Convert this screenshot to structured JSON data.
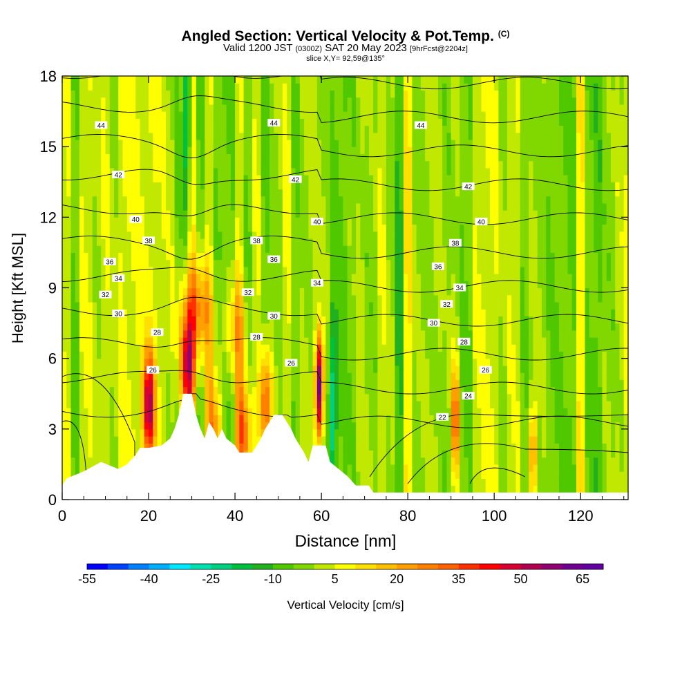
{
  "header": {
    "title": "Angled Section: Vertical Velocity & Pot.Temp.",
    "title_tag": "(C)",
    "valid_prefix": "Valid 1200 JST",
    "valid_z": "(0300Z)",
    "valid_date": "SAT 20 May 2023",
    "fcst_tag": "[9hrFcst@2204z]",
    "slice": "slice X,Y= 92,59@135°"
  },
  "chart_data": {
    "type": "heatmap",
    "xlabel": "Distance [nm]",
    "ylabel": "Height [Kft MSL]",
    "xlim": [
      0,
      131
    ],
    "ylim": [
      0,
      18
    ],
    "x_ticks": [
      0,
      20,
      40,
      60,
      80,
      100,
      120
    ],
    "y_ticks": [
      0,
      3,
      6,
      9,
      12,
      15,
      18
    ],
    "colorbar": {
      "label": "Vertical Velocity [cm/s]",
      "tick_labels": [
        -55,
        -40,
        -25,
        -10,
        5,
        20,
        35,
        50,
        65
      ],
      "min": -55,
      "step": 5,
      "colors": [
        "#0000ff",
        "#0040ff",
        "#0080ff",
        "#00b0ff",
        "#00e8ff",
        "#00e0b0",
        "#00d080",
        "#00c040",
        "#20b020",
        "#50c800",
        "#80d800",
        "#c0e800",
        "#ffff00",
        "#ffe000",
        "#ffc000",
        "#ffa000",
        "#ff8000",
        "#ff6000",
        "#ff3000",
        "#ff0000",
        "#d80030",
        "#b00050",
        "#900070",
        "#700090",
        "#6000a0"
      ]
    },
    "background_velocity": 0,
    "updrafts": [
      {
        "x": 20,
        "z": 4.0,
        "peak": 50,
        "width_nm": 1.4
      },
      {
        "x": 29,
        "z": 5.5,
        "peak": 48,
        "width_nm": 1.6
      },
      {
        "x": 31,
        "z": 8.0,
        "peak": 30,
        "width_nm": 3.5
      },
      {
        "x": 35,
        "z": 3.0,
        "peak": 25,
        "width_nm": 2.0
      },
      {
        "x": 40,
        "z": 7.2,
        "peak": 18,
        "width_nm": 3.0
      },
      {
        "x": 42,
        "z": 2.8,
        "peak": 30,
        "width_nm": 2.0
      },
      {
        "x": 47,
        "z": 4.0,
        "peak": 38,
        "width_nm": 1.4
      },
      {
        "x": 59.5,
        "z": 4.8,
        "peak": 65,
        "width_nm": 0.9
      },
      {
        "x": 91,
        "z": 3.5,
        "peak": 35,
        "width_nm": 0.8
      },
      {
        "x": 109,
        "z": 2.0,
        "peak": 30,
        "width_nm": 0.8
      }
    ],
    "downdrafts": [
      {
        "x": 29,
        "z": 16.5,
        "peak": -25,
        "width_nm": 0.8
      },
      {
        "x": 62.5,
        "z": 4.0,
        "peak": -20,
        "width_nm": 1.0
      }
    ],
    "terrain_kft": [
      [
        0,
        0.6
      ],
      [
        1,
        0.9
      ],
      [
        5,
        1.2
      ],
      [
        9,
        1.6
      ],
      [
        13,
        1.3
      ],
      [
        15,
        1.5
      ],
      [
        17,
        1.9
      ],
      [
        18,
        2.2
      ],
      [
        20,
        2.2
      ],
      [
        23,
        2.3
      ],
      [
        25,
        2.6
      ],
      [
        26,
        3.0
      ],
      [
        27,
        3.6
      ],
      [
        28,
        4.5
      ],
      [
        30,
        4.5
      ],
      [
        31,
        3.6
      ],
      [
        32,
        3.0
      ],
      [
        33,
        2.6
      ],
      [
        34,
        3.3
      ],
      [
        35,
        3.0
      ],
      [
        36,
        2.6
      ],
      [
        37,
        3.0
      ],
      [
        38,
        2.6
      ],
      [
        40,
        2.3
      ],
      [
        41,
        2.0
      ],
      [
        44,
        2.0
      ],
      [
        45,
        2.3
      ],
      [
        46,
        2.6
      ],
      [
        47,
        3.0
      ],
      [
        49,
        3.6
      ],
      [
        51,
        3.6
      ],
      [
        52,
        3.3
      ],
      [
        53,
        3.0
      ],
      [
        54,
        2.6
      ],
      [
        55,
        2.3
      ],
      [
        56,
        2.0
      ],
      [
        57,
        1.6
      ],
      [
        58,
        2.3
      ],
      [
        61,
        2.3
      ],
      [
        62,
        1.6
      ],
      [
        64,
        1.3
      ],
      [
        66,
        1.0
      ],
      [
        68,
        0.6
      ],
      [
        71,
        0.6
      ],
      [
        72,
        0.3
      ],
      [
        131,
        0.3
      ]
    ],
    "contour_levels": [
      22,
      24,
      26,
      28,
      30,
      32,
      34,
      36,
      38,
      40,
      42,
      44
    ],
    "contour_labels": [
      {
        "text": "44",
        "x": 9,
        "z": 15.9
      },
      {
        "text": "44",
        "x": 49,
        "z": 16.0
      },
      {
        "text": "44",
        "x": 83,
        "z": 15.9
      },
      {
        "text": "42",
        "x": 13,
        "z": 13.8
      },
      {
        "text": "42",
        "x": 54,
        "z": 13.6
      },
      {
        "text": "42",
        "x": 94,
        "z": 13.3
      },
      {
        "text": "40",
        "x": 17,
        "z": 11.9
      },
      {
        "text": "40",
        "x": 59,
        "z": 11.8
      },
      {
        "text": "40",
        "x": 97,
        "z": 11.8
      },
      {
        "text": "38",
        "x": 20,
        "z": 11.0
      },
      {
        "text": "38",
        "x": 45,
        "z": 11.0
      },
      {
        "text": "38",
        "x": 91,
        "z": 10.9
      },
      {
        "text": "36",
        "x": 11,
        "z": 10.1
      },
      {
        "text": "36",
        "x": 49,
        "z": 10.2
      },
      {
        "text": "36",
        "x": 87,
        "z": 9.9
      },
      {
        "text": "34",
        "x": 13,
        "z": 9.4
      },
      {
        "text": "34",
        "x": 59,
        "z": 9.2
      },
      {
        "text": "34",
        "x": 92,
        "z": 9.0
      },
      {
        "text": "32",
        "x": 10,
        "z": 8.7
      },
      {
        "text": "32",
        "x": 43,
        "z": 8.8
      },
      {
        "text": "32",
        "x": 89,
        "z": 8.3
      },
      {
        "text": "30",
        "x": 13,
        "z": 7.9
      },
      {
        "text": "30",
        "x": 49,
        "z": 7.8
      },
      {
        "text": "30",
        "x": 86,
        "z": 7.5
      },
      {
        "text": "28",
        "x": 22,
        "z": 7.1
      },
      {
        "text": "28",
        "x": 45,
        "z": 6.9
      },
      {
        "text": "28",
        "x": 93,
        "z": 6.7
      },
      {
        "text": "26",
        "x": 53,
        "z": 5.8
      },
      {
        "text": "26",
        "x": 98,
        "z": 5.5
      },
      {
        "text": "26",
        "x": 21,
        "z": 5.5
      },
      {
        "text": "24",
        "x": 94,
        "z": 4.4
      },
      {
        "text": "22",
        "x": 88,
        "z": 3.5
      }
    ]
  }
}
